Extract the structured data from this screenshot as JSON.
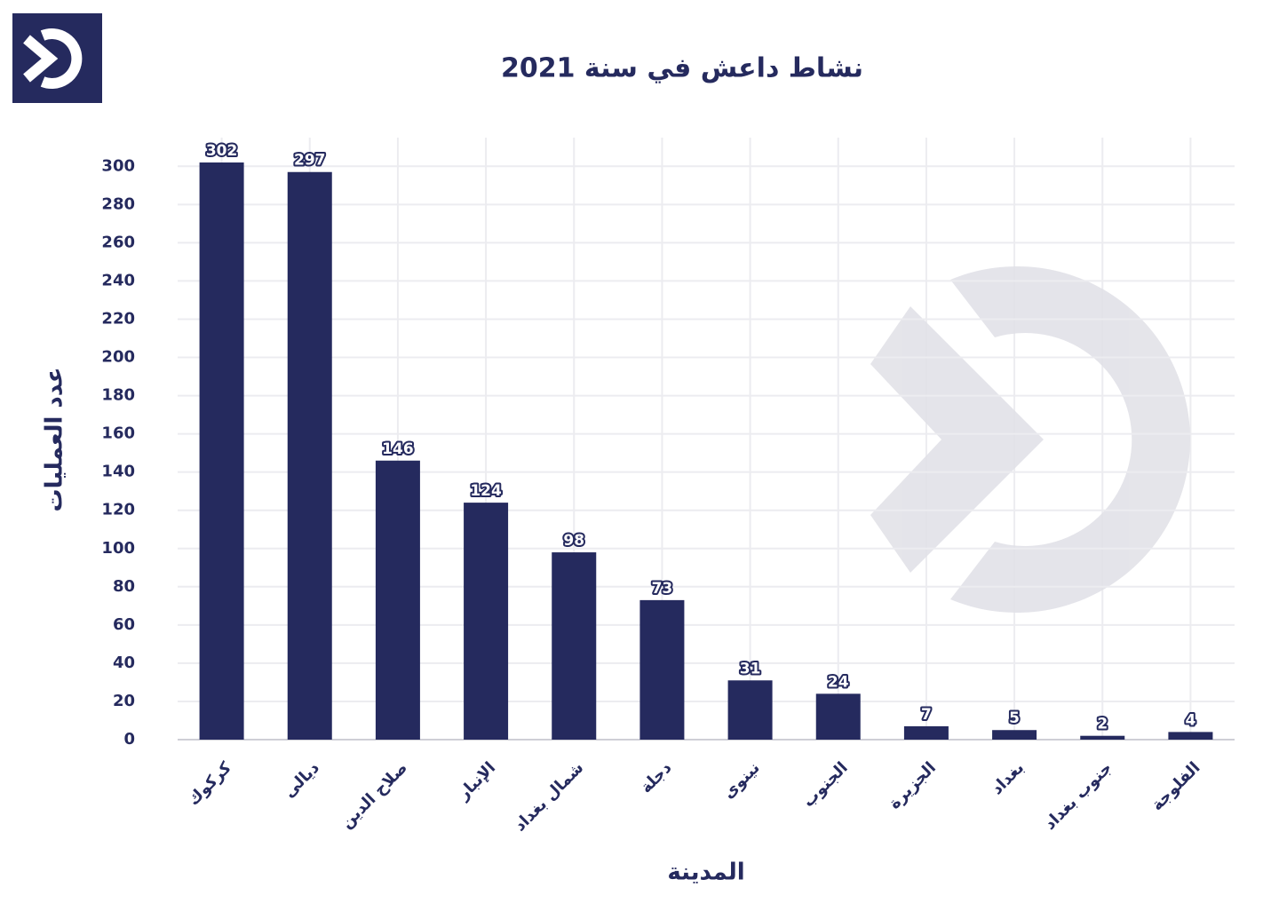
{
  "chart_data": {
    "type": "bar",
    "title": "نشاط داعش في سنة 2021",
    "x_label": "المدينة",
    "y_label": "عدد العمليات",
    "categories": [
      "كركوك",
      "ديالى",
      "صلاح الدين",
      "الإنبار",
      "شمال بغداد",
      "دجلة",
      "نينوى",
      "الجنوب",
      "الجزيرة",
      "بغداد",
      "جنوب بغداد",
      "الفلوجة"
    ],
    "values": [
      302,
      297,
      146,
      124,
      98,
      73,
      31,
      24,
      7,
      5,
      2,
      4
    ],
    "color": "#252a5e",
    "ylim": [
      0,
      315
    ],
    "yticks": [
      0,
      20,
      40,
      60,
      80,
      100,
      120,
      140,
      160,
      180,
      200,
      220,
      240,
      260,
      280,
      300
    ],
    "grid": true
  }
}
